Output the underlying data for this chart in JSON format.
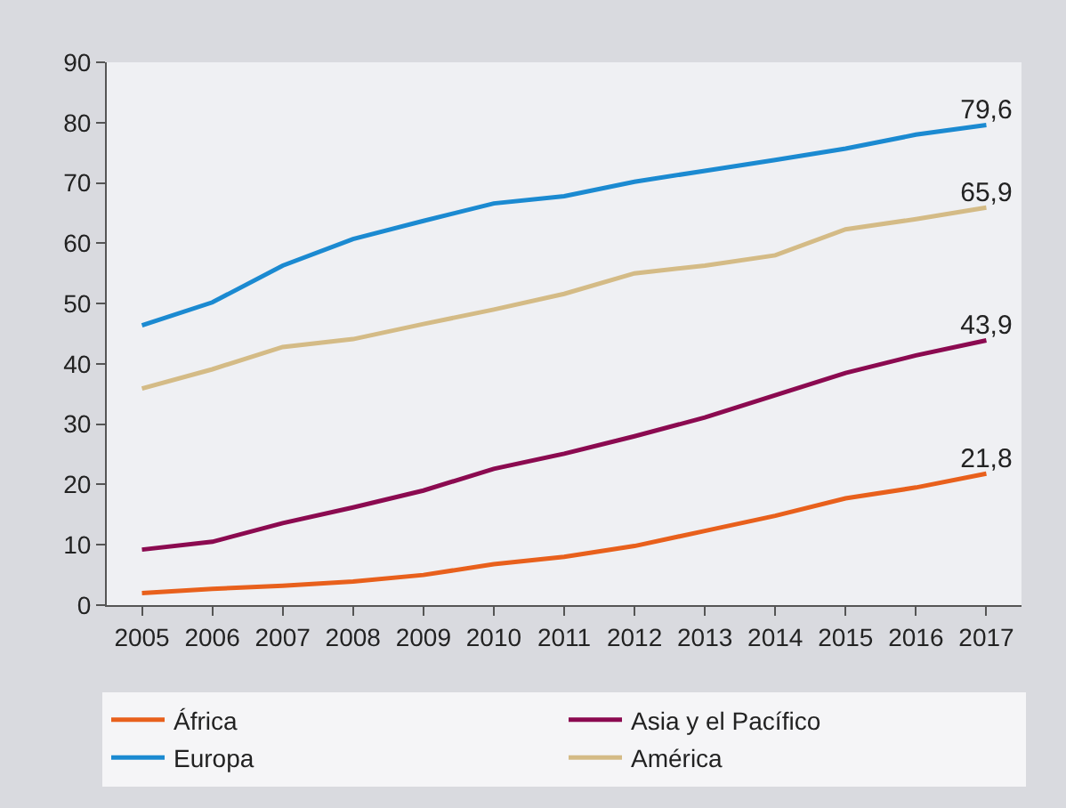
{
  "chart_data": {
    "type": "line",
    "categories": [
      "2005",
      "2006",
      "2007",
      "2008",
      "2009",
      "2010",
      "2011",
      "2012",
      "2013",
      "2014",
      "2015",
      "2016",
      "2017"
    ],
    "series": [
      {
        "name": "África",
        "color": "#e8601c",
        "values": [
          2.0,
          2.7,
          3.2,
          3.9,
          5.0,
          6.8,
          8.0,
          9.8,
          12.3,
          14.8,
          17.7,
          19.5,
          21.8
        ],
        "value_labels": [
          null,
          null,
          null,
          null,
          null,
          null,
          null,
          null,
          null,
          null,
          null,
          null,
          "21,8"
        ]
      },
      {
        "name": "Asia y el Pacífico",
        "color": "#8b0a50",
        "values": [
          9.2,
          10.5,
          13.6,
          16.2,
          19.0,
          22.6,
          25.1,
          28.0,
          31.1,
          34.8,
          38.5,
          41.4,
          43.9
        ],
        "value_labels": [
          null,
          null,
          null,
          null,
          null,
          null,
          null,
          null,
          null,
          null,
          null,
          null,
          "43,9"
        ]
      },
      {
        "name": "Europa",
        "color": "#1b8ad1",
        "values": [
          46.4,
          50.2,
          56.3,
          60.7,
          63.7,
          66.6,
          67.8,
          70.2,
          72.0,
          73.8,
          75.7,
          78.0,
          79.6
        ],
        "value_labels": [
          null,
          null,
          null,
          null,
          null,
          null,
          null,
          null,
          null,
          null,
          null,
          null,
          "79,6"
        ]
      },
      {
        "name": "América",
        "color": "#d4bb86",
        "values": [
          35.9,
          39.1,
          42.8,
          44.1,
          46.6,
          49.0,
          51.6,
          55.0,
          56.3,
          58.0,
          62.3,
          64.0,
          65.9
        ],
        "value_labels": [
          null,
          null,
          null,
          null,
          null,
          null,
          null,
          null,
          null,
          null,
          null,
          null,
          "65,9"
        ]
      }
    ],
    "ylim": [
      0,
      90
    ],
    "yticks": [
      0,
      10,
      20,
      30,
      40,
      50,
      60,
      70,
      80,
      90
    ],
    "grid": false,
    "legend": "bottom",
    "marker": "none",
    "line_style": "solid"
  }
}
